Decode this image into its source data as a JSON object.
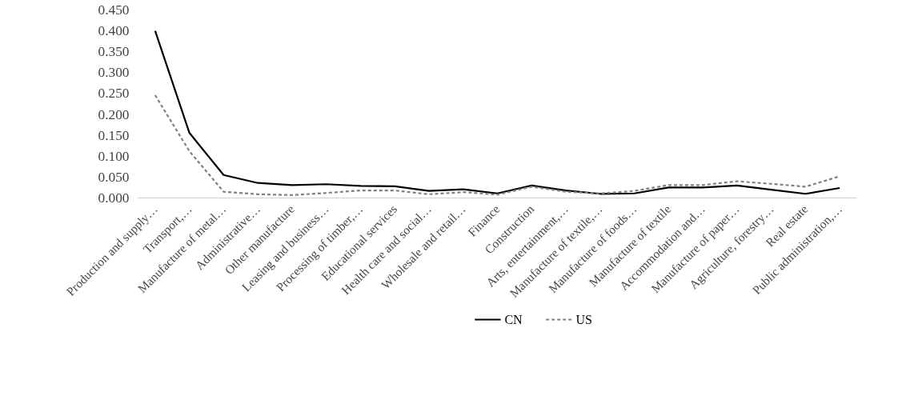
{
  "chart_data": {
    "type": "line",
    "categories": [
      "Production and supply…",
      "Transport,…",
      "Manufacture of metal…",
      "Administrative…",
      "Other manufacture",
      "Leasing and business…",
      "Processing of timber,…",
      "Educational services",
      "Health care and social…",
      "Wholesale and retail…",
      "Finance",
      "Construction",
      "Arts, entertainment,…",
      "Manufacture of textile,…",
      "Manufacture of foods…",
      "Manufacture of textile",
      "Accommodation and…",
      "Manufacture of paper…",
      "Agriculture, forestry…",
      "Real estate",
      "Public administration,…"
    ],
    "series": [
      {
        "name": "CN",
        "color": "#000000",
        "line_style": "solid",
        "values": [
          0.4,
          0.156,
          0.055,
          0.036,
          0.031,
          0.033,
          0.029,
          0.028,
          0.017,
          0.021,
          0.011,
          0.03,
          0.018,
          0.01,
          0.011,
          0.025,
          0.025,
          0.03,
          0.02,
          0.01,
          0.024
        ]
      },
      {
        "name": "US",
        "color": "#808080",
        "line_style": "dashed",
        "values": [
          0.246,
          0.112,
          0.015,
          0.009,
          0.007,
          0.012,
          0.018,
          0.018,
          0.009,
          0.014,
          0.008,
          0.027,
          0.015,
          0.011,
          0.017,
          0.031,
          0.031,
          0.04,
          0.034,
          0.027,
          0.052
        ]
      }
    ],
    "ylim": [
      0,
      0.45
    ],
    "yticks": [
      {
        "value": 0,
        "label": "0.000"
      },
      {
        "value": 0.05,
        "label": "0.050"
      },
      {
        "value": 0.1,
        "label": "0.100"
      },
      {
        "value": 0.15,
        "label": "0.150"
      },
      {
        "value": 0.2,
        "label": "0.200"
      },
      {
        "value": 0.25,
        "label": "0.250"
      },
      {
        "value": 0.3,
        "label": "0.300"
      },
      {
        "value": 0.35,
        "label": "0.350"
      },
      {
        "value": 0.4,
        "label": "0.400"
      },
      {
        "value": 0.45,
        "label": "0.450"
      }
    ],
    "grid": false,
    "legend": "bottom"
  }
}
